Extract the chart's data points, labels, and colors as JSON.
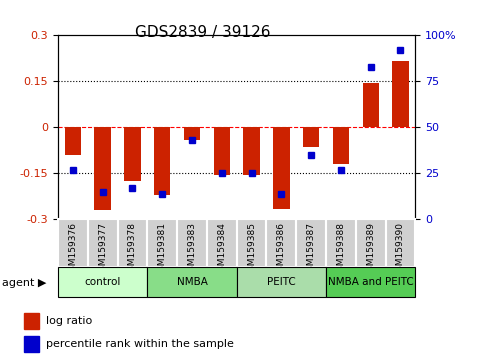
{
  "title": "GDS2839 / 39126",
  "samples": [
    "GSM159376",
    "GSM159377",
    "GSM159378",
    "GSM159381",
    "GSM159383",
    "GSM159384",
    "GSM159385",
    "GSM159386",
    "GSM159387",
    "GSM159388",
    "GSM159389",
    "GSM159390"
  ],
  "log_ratio": [
    -0.09,
    -0.27,
    -0.175,
    -0.22,
    -0.04,
    -0.155,
    -0.155,
    -0.265,
    -0.065,
    -0.12,
    0.145,
    0.215
  ],
  "percentile_rank": [
    27,
    15,
    17,
    14,
    43,
    25,
    25,
    14,
    35,
    27,
    83,
    92
  ],
  "groups": [
    {
      "label": "control",
      "start": 0,
      "end": 3,
      "color": "#ccffcc"
    },
    {
      "label": "NMBA",
      "start": 3,
      "end": 6,
      "color": "#66cc66"
    },
    {
      "label": "PEITC",
      "start": 6,
      "end": 9,
      "color": "#99cc99"
    },
    {
      "label": "NMBA and PEITC",
      "start": 9,
      "end": 12,
      "color": "#44bb44"
    }
  ],
  "bar_color": "#cc2200",
  "dot_color": "#0000cc",
  "bg_color": "#f0f0f0",
  "plot_bg": "#ffffff",
  "ylim": [
    -0.3,
    0.3
  ],
  "y2lim": [
    0,
    100
  ],
  "yticks": [
    -0.3,
    -0.15,
    0,
    0.15,
    0.3
  ],
  "y2ticks": [
    0,
    25,
    50,
    75,
    100
  ],
  "hline_dashed_red": 0,
  "hlines_dotted": [
    -0.15,
    0.15
  ]
}
